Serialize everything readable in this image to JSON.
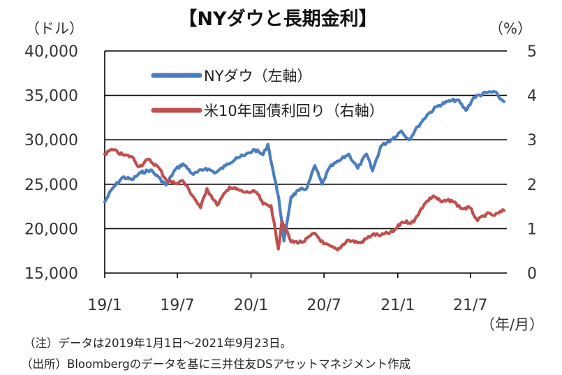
{
  "chart_data": {
    "type": "line",
    "title": "【NYダウと長期金利】",
    "left_axis_unit": "（ドル）",
    "right_axis_unit": "（%）",
    "x_unit": "（年/月）",
    "x_tick_labels": [
      "19/1",
      "19/7",
      "20/1",
      "20/7",
      "21/1",
      "21/7"
    ],
    "x_range": [
      "2019-01-01",
      "2021-09-23"
    ],
    "left_axis": {
      "min": 15000,
      "max": 40000,
      "step": 5000,
      "tick_labels": [
        "15,000",
        "20,000",
        "25,000",
        "30,000",
        "35,000",
        "40,000"
      ]
    },
    "right_axis": {
      "min": 0,
      "max": 5,
      "step": 1,
      "tick_labels": [
        "0",
        "1",
        "2",
        "3",
        "4",
        "5"
      ]
    },
    "grid": "horizontal",
    "legend_position": "top-left",
    "series": [
      {
        "name": "NYダウ（左軸）",
        "axis": "left",
        "color": "#4a7ebf",
        "points": [
          [
            "2019-01-01",
            23000
          ],
          [
            "2019-01-20",
            24500
          ],
          [
            "2019-02-15",
            25800
          ],
          [
            "2019-03-10",
            25500
          ],
          [
            "2019-04-01",
            26300
          ],
          [
            "2019-04-25",
            26600
          ],
          [
            "2019-05-15",
            25800
          ],
          [
            "2019-06-03",
            24900
          ],
          [
            "2019-06-25",
            26600
          ],
          [
            "2019-07-15",
            27300
          ],
          [
            "2019-08-10",
            26100
          ],
          [
            "2019-09-10",
            26800
          ],
          [
            "2019-10-05",
            26300
          ],
          [
            "2019-10-30",
            27100
          ],
          [
            "2019-11-25",
            28000
          ],
          [
            "2019-12-15",
            28200
          ],
          [
            "2020-01-10",
            28900
          ],
          [
            "2020-01-31",
            28300
          ],
          [
            "2020-02-12",
            29500
          ],
          [
            "2020-02-28",
            25800
          ],
          [
            "2020-03-10",
            23500
          ],
          [
            "2020-03-23",
            18600
          ],
          [
            "2020-04-10",
            23600
          ],
          [
            "2020-04-30",
            24300
          ],
          [
            "2020-05-20",
            24600
          ],
          [
            "2020-06-08",
            27100
          ],
          [
            "2020-06-26",
            25000
          ],
          [
            "2020-07-15",
            26900
          ],
          [
            "2020-08-10",
            27700
          ],
          [
            "2020-08-31",
            28400
          ],
          [
            "2020-09-23",
            26800
          ],
          [
            "2020-10-15",
            28400
          ],
          [
            "2020-10-30",
            26500
          ],
          [
            "2020-11-20",
            29300
          ],
          [
            "2020-12-15",
            30000
          ],
          [
            "2021-01-10",
            31000
          ],
          [
            "2021-01-29",
            30000
          ],
          [
            "2021-02-20",
            31500
          ],
          [
            "2021-03-15",
            32800
          ],
          [
            "2021-04-10",
            33800
          ],
          [
            "2021-05-05",
            34300
          ],
          [
            "2021-05-30",
            34500
          ],
          [
            "2021-06-20",
            33300
          ],
          [
            "2021-07-10",
            34800
          ],
          [
            "2021-08-10",
            35300
          ],
          [
            "2021-08-31",
            35400
          ],
          [
            "2021-09-10",
            34800
          ],
          [
            "2021-09-23",
            34300
          ]
        ]
      },
      {
        "name": "米10年国債利回り（右軸）",
        "axis": "right",
        "color": "#c0504d",
        "points": [
          [
            "2019-01-01",
            2.68
          ],
          [
            "2019-01-20",
            2.78
          ],
          [
            "2019-02-15",
            2.66
          ],
          [
            "2019-03-10",
            2.62
          ],
          [
            "2019-03-28",
            2.39
          ],
          [
            "2019-04-20",
            2.56
          ],
          [
            "2019-05-15",
            2.38
          ],
          [
            "2019-06-03",
            2.1
          ],
          [
            "2019-06-25",
            2.02
          ],
          [
            "2019-07-15",
            2.08
          ],
          [
            "2019-08-10",
            1.72
          ],
          [
            "2019-08-28",
            1.47
          ],
          [
            "2019-09-13",
            1.9
          ],
          [
            "2019-10-08",
            1.53
          ],
          [
            "2019-11-08",
            1.94
          ],
          [
            "2019-12-15",
            1.82
          ],
          [
            "2020-01-15",
            1.82
          ],
          [
            "2020-01-31",
            1.55
          ],
          [
            "2020-02-20",
            1.52
          ],
          [
            "2020-03-09",
            0.54
          ],
          [
            "2020-03-18",
            1.18
          ],
          [
            "2020-04-10",
            0.7
          ],
          [
            "2020-05-10",
            0.7
          ],
          [
            "2020-06-08",
            0.9
          ],
          [
            "2020-06-30",
            0.66
          ],
          [
            "2020-08-04",
            0.52
          ],
          [
            "2020-08-28",
            0.74
          ],
          [
            "2020-09-30",
            0.68
          ],
          [
            "2020-10-30",
            0.87
          ],
          [
            "2020-11-20",
            0.85
          ],
          [
            "2020-12-20",
            0.93
          ],
          [
            "2021-01-12",
            1.15
          ],
          [
            "2021-02-10",
            1.15
          ],
          [
            "2021-02-28",
            1.45
          ],
          [
            "2021-03-15",
            1.62
          ],
          [
            "2021-03-31",
            1.74
          ],
          [
            "2021-04-20",
            1.6
          ],
          [
            "2021-05-15",
            1.64
          ],
          [
            "2021-06-10",
            1.45
          ],
          [
            "2021-06-30",
            1.47
          ],
          [
            "2021-07-19",
            1.18
          ],
          [
            "2021-08-10",
            1.33
          ],
          [
            "2021-08-31",
            1.3
          ],
          [
            "2021-09-23",
            1.41
          ]
        ]
      }
    ]
  },
  "notes": [
    "（注）データは2019年1月1日～2021年9月23日。",
    "（出所）Bloombergのデータを基に三井住友DSアセットマネジメント作成"
  ]
}
